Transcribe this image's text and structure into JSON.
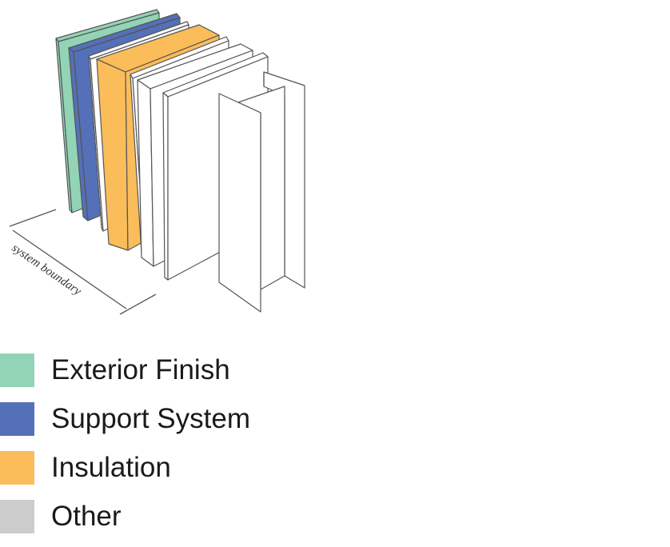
{
  "diagram": {
    "boundary_label": "system boundary",
    "layers": [
      {
        "name": "exterior-finish",
        "color": "#93d3b6"
      },
      {
        "name": "support-system",
        "color": "#5470b8"
      },
      {
        "name": "insulation",
        "color": "#fbbc5a"
      },
      {
        "name": "other",
        "color": "#ffffff"
      }
    ],
    "stroke_color": "#555555"
  },
  "legend": {
    "items": [
      {
        "label": "Exterior Finish",
        "color": "#93d3b6"
      },
      {
        "label": "Support System",
        "color": "#5470b8"
      },
      {
        "label": "Insulation",
        "color": "#fbbc5a"
      },
      {
        "label": "Other",
        "color": "#cccccc"
      }
    ]
  }
}
